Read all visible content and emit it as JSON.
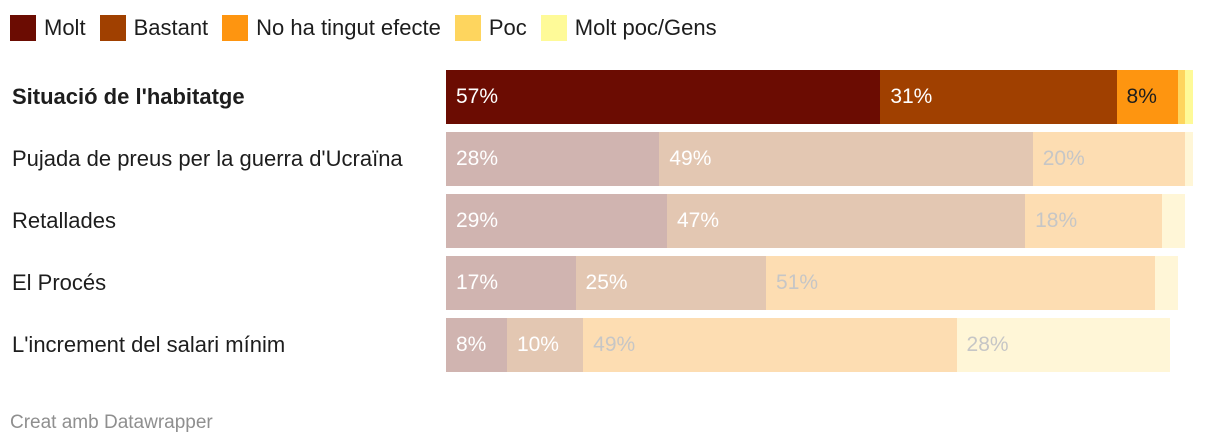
{
  "chart_data": {
    "type": "bar",
    "orientation": "horizontal",
    "stacked": true,
    "title": "",
    "xlabel": "",
    "ylabel": "",
    "xlim": [
      0,
      100
    ],
    "legend_position": "top-left",
    "series": [
      {
        "name": "Molt",
        "color": "#6b0c02"
      },
      {
        "name": "Bastant",
        "color": "#a04000"
      },
      {
        "name": "No ha tingut efecte",
        "color": "#fe9510"
      },
      {
        "name": "Poc",
        "color": "#fed55e"
      },
      {
        "name": "Molt poc/Gens",
        "color": "#fefa98"
      }
    ],
    "rows": [
      {
        "label": "Situació de l'habitatge",
        "highlight": true,
        "values": [
          57,
          31,
          8,
          1,
          1
        ],
        "labels": [
          "57%",
          "31%",
          "8%",
          "",
          ""
        ]
      },
      {
        "label": "Pujada de preus per la guerra d'Ucraïna",
        "highlight": false,
        "values": [
          28,
          49,
          0,
          20,
          1
        ],
        "labels": [
          "28%",
          "49%",
          "",
          "20%",
          ""
        ]
      },
      {
        "label": "Retallades",
        "highlight": false,
        "values": [
          29,
          47,
          0,
          18,
          3
        ],
        "labels": [
          "29%",
          "47%",
          "",
          "18%",
          ""
        ]
      },
      {
        "label": "El Procés",
        "highlight": false,
        "values": [
          17,
          25,
          0,
          51,
          3
        ],
        "labels": [
          "17%",
          "25%",
          "",
          "51%",
          ""
        ]
      },
      {
        "label": "L'increment del salari mínim",
        "highlight": false,
        "values": [
          8,
          10,
          0,
          49,
          28
        ],
        "labels": [
          "8%",
          "10%",
          "",
          "49%",
          "28%"
        ]
      }
    ],
    "faded_colors": [
      "#d0b4b0",
      "#e3c7b2",
      "#fee0bc",
      "#fdddb2",
      "#fff6d7"
    ]
  },
  "footer": {
    "text": "Creat amb Datawrapper"
  }
}
